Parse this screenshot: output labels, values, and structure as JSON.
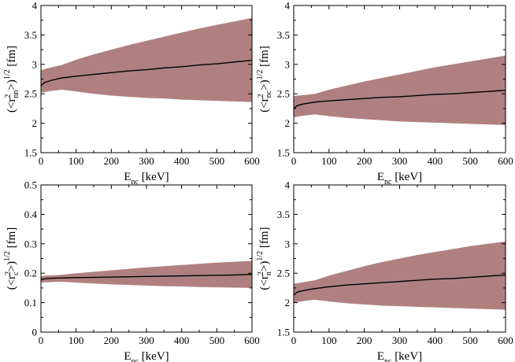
{
  "chart_data": [
    {
      "id": "p1",
      "type": "area",
      "xlim": [
        0,
        600
      ],
      "ylim": [
        1.5,
        4
      ],
      "xticks": [
        0,
        100,
        200,
        300,
        400,
        500,
        600
      ],
      "yticks": [
        1.5,
        2,
        2.5,
        3,
        3.5,
        4
      ],
      "ytick_labels": [
        "1.5",
        "2",
        "2.5",
        "3",
        "3.5",
        "4"
      ],
      "xlabel": {
        "main": "E",
        "sub": "nc",
        "unit": " [keV]"
      },
      "ylabel": {
        "pre": "(<r",
        "sup": "2",
        "sub": "nn",
        "post": ">)",
        "exp": "1/2",
        "unit": " [fm]"
      },
      "band_color": "#b08080",
      "line_color": "#000000",
      "x": [
        0,
        10,
        30,
        60,
        100,
        150,
        200,
        250,
        300,
        350,
        400,
        450,
        500,
        550,
        600
      ],
      "center": [
        2.64,
        2.69,
        2.73,
        2.77,
        2.8,
        2.83,
        2.86,
        2.89,
        2.91,
        2.94,
        2.96,
        2.99,
        3.01,
        3.04,
        3.07
      ],
      "upper": [
        2.9,
        2.92,
        2.95,
        2.99,
        3.08,
        3.17,
        3.25,
        3.33,
        3.4,
        3.47,
        3.54,
        3.61,
        3.67,
        3.73,
        3.79
      ],
      "lower": [
        2.52,
        2.53,
        2.55,
        2.57,
        2.54,
        2.5,
        2.47,
        2.45,
        2.43,
        2.42,
        2.4,
        2.39,
        2.38,
        2.37,
        2.36
      ]
    },
    {
      "id": "p2",
      "type": "area",
      "xlim": [
        0,
        600
      ],
      "ylim": [
        1.5,
        4
      ],
      "xticks": [
        0,
        100,
        200,
        300,
        400,
        500,
        600
      ],
      "yticks": [
        1.5,
        2,
        2.5,
        3,
        3.5,
        4
      ],
      "ytick_labels": [
        "1.5",
        "2",
        "2.5",
        "3",
        "3.5",
        "4"
      ],
      "xlabel": {
        "main": "E",
        "sub": "nc",
        "unit": " [keV]"
      },
      "ylabel": {
        "pre": "(<r",
        "sup": "2",
        "sub": "nc",
        "post": ">)",
        "exp": "1/2",
        "unit": " [fm]"
      },
      "band_color": "#b08080",
      "line_color": "#000000",
      "x": [
        0,
        10,
        30,
        60,
        100,
        150,
        200,
        250,
        300,
        350,
        400,
        450,
        500,
        550,
        600
      ],
      "center": [
        2.25,
        2.3,
        2.33,
        2.36,
        2.38,
        2.4,
        2.42,
        2.44,
        2.45,
        2.47,
        2.49,
        2.5,
        2.52,
        2.54,
        2.56
      ],
      "upper": [
        2.46,
        2.47,
        2.48,
        2.5,
        2.57,
        2.64,
        2.71,
        2.77,
        2.83,
        2.89,
        2.95,
        3.0,
        3.05,
        3.1,
        3.15
      ],
      "lower": [
        2.1,
        2.11,
        2.13,
        2.15,
        2.12,
        2.09,
        2.07,
        2.05,
        2.03,
        2.02,
        2.01,
        2.0,
        1.99,
        1.98,
        1.97
      ]
    },
    {
      "id": "p3",
      "type": "area",
      "xlim": [
        0,
        600
      ],
      "ylim": [
        0,
        0.5
      ],
      "xticks": [
        0,
        100,
        200,
        300,
        400,
        500,
        600
      ],
      "yticks": [
        0,
        0.1,
        0.2,
        0.3,
        0.4,
        0.5
      ],
      "ytick_labels": [
        "0",
        "0.1",
        "0.2",
        "0.3",
        "0.4",
        "0.5"
      ],
      "xlabel": {
        "main": "E",
        "sub": "nc",
        "unit": " [keV]"
      },
      "ylabel": {
        "pre": "(<r",
        "sup": "2",
        "sub": "c",
        "post": ">)",
        "exp": "1/2",
        "unit": " [fm]"
      },
      "band_color": "#b08080",
      "line_color": "#000000",
      "x": [
        0,
        10,
        30,
        60,
        100,
        150,
        200,
        250,
        300,
        350,
        400,
        450,
        500,
        550,
        600
      ],
      "center": [
        0.178,
        0.181,
        0.183,
        0.184,
        0.185,
        0.186,
        0.187,
        0.188,
        0.189,
        0.19,
        0.191,
        0.192,
        0.193,
        0.194,
        0.196
      ],
      "upper": [
        0.19,
        0.192,
        0.193,
        0.195,
        0.2,
        0.205,
        0.21,
        0.215,
        0.22,
        0.224,
        0.228,
        0.232,
        0.236,
        0.239,
        0.242
      ],
      "lower": [
        0.168,
        0.169,
        0.17,
        0.171,
        0.168,
        0.165,
        0.162,
        0.16,
        0.158,
        0.156,
        0.155,
        0.153,
        0.152,
        0.151,
        0.15
      ]
    },
    {
      "id": "p4",
      "type": "area",
      "xlim": [
        0,
        600
      ],
      "ylim": [
        1.5,
        4
      ],
      "xticks": [
        0,
        100,
        200,
        300,
        400,
        500,
        600
      ],
      "yticks": [
        1.5,
        2,
        2.5,
        3,
        3.5,
        4
      ],
      "ytick_labels": [
        "1.5",
        "2",
        "2.5",
        "3",
        "3.5",
        "4"
      ],
      "xlabel": {
        "main": "E",
        "sub": "nc",
        "unit": " [keV]"
      },
      "ylabel": {
        "pre": "(<r",
        "sup": "2",
        "sub": "n",
        "post": ">)",
        "exp": "1/2",
        "unit": " [fm]"
      },
      "band_color": "#b08080",
      "line_color": "#000000",
      "x": [
        0,
        10,
        30,
        60,
        100,
        150,
        200,
        250,
        300,
        350,
        400,
        450,
        500,
        550,
        600
      ],
      "center": [
        2.13,
        2.18,
        2.21,
        2.24,
        2.27,
        2.3,
        2.32,
        2.34,
        2.36,
        2.38,
        2.4,
        2.41,
        2.43,
        2.45,
        2.47
      ],
      "upper": [
        2.32,
        2.33,
        2.35,
        2.38,
        2.46,
        2.54,
        2.62,
        2.69,
        2.75,
        2.81,
        2.86,
        2.91,
        2.96,
        3.0,
        3.04
      ],
      "lower": [
        2.0,
        2.01,
        2.03,
        2.05,
        2.02,
        1.99,
        1.97,
        1.95,
        1.94,
        1.93,
        1.92,
        1.91,
        1.9,
        1.89,
        1.88
      ]
    }
  ]
}
